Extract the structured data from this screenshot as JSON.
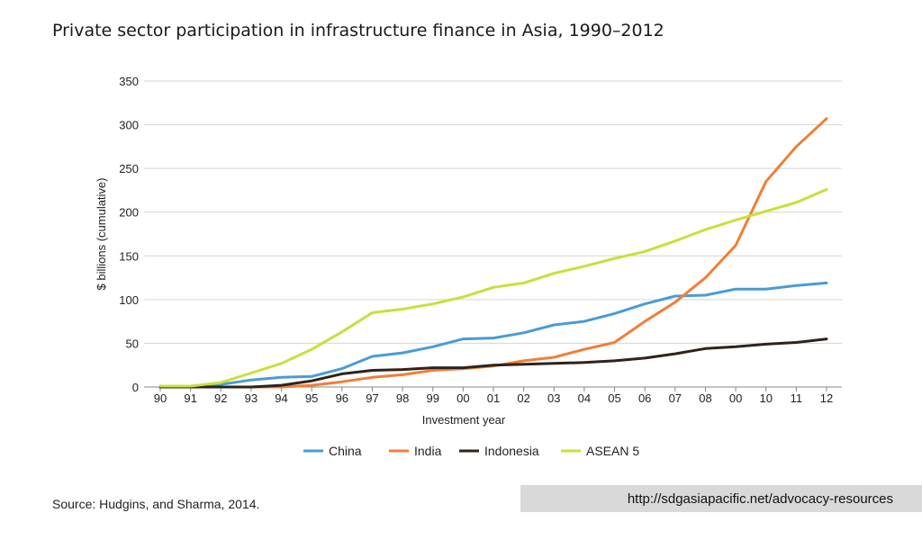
{
  "chart_data": {
    "type": "line",
    "title": "Private sector participation in infrastructure finance in Asia, 1990–2012",
    "xlabel": "Investment year",
    "ylabel": "$ billions (cumulative)",
    "categories": [
      "90",
      "91",
      "92",
      "93",
      "94",
      "95",
      "96",
      "97",
      "98",
      "99",
      "00",
      "01",
      "02",
      "03",
      "04",
      "05",
      "06",
      "07",
      "08",
      "00",
      "10",
      "11",
      "12"
    ],
    "ylim": [
      0,
      350
    ],
    "yticks": [
      0,
      50,
      100,
      150,
      200,
      250,
      300,
      350
    ],
    "grid": true,
    "legend_position": "bottom",
    "series": [
      {
        "name": "China",
        "color": "#4a9bd6",
        "values": [
          1,
          1,
          3,
          8,
          11,
          12,
          21,
          35,
          39,
          46,
          55,
          56,
          62,
          71,
          75,
          84,
          95,
          104,
          105,
          112,
          112,
          116,
          119
        ]
      },
      {
        "name": "India",
        "color": "#f07f35",
        "values": [
          0,
          0,
          0,
          0,
          0,
          2,
          6,
          11,
          14,
          19,
          21,
          24,
          30,
          34,
          43,
          51,
          75,
          97,
          125,
          162,
          235,
          275,
          307
        ]
      },
      {
        "name": "Indonesia",
        "color": "#2e221c",
        "values": [
          0,
          0,
          0,
          0,
          2,
          7,
          15,
          19,
          20,
          22,
          22,
          25,
          26,
          27,
          28,
          30,
          33,
          38,
          44,
          46,
          49,
          51,
          55
        ]
      },
      {
        "name": "ASEAN 5",
        "color": "#c9e03a",
        "values": [
          1,
          1,
          5,
          16,
          27,
          43,
          63,
          85,
          89,
          95,
          103,
          114,
          119,
          130,
          138,
          147,
          155,
          167,
          180,
          191,
          201,
          211,
          226
        ]
      }
    ]
  },
  "footer": {
    "source": "Source: Hudgins, and Sharma, 2014.",
    "url": "http://sdgasiapacific.net/advocacy-resources"
  }
}
